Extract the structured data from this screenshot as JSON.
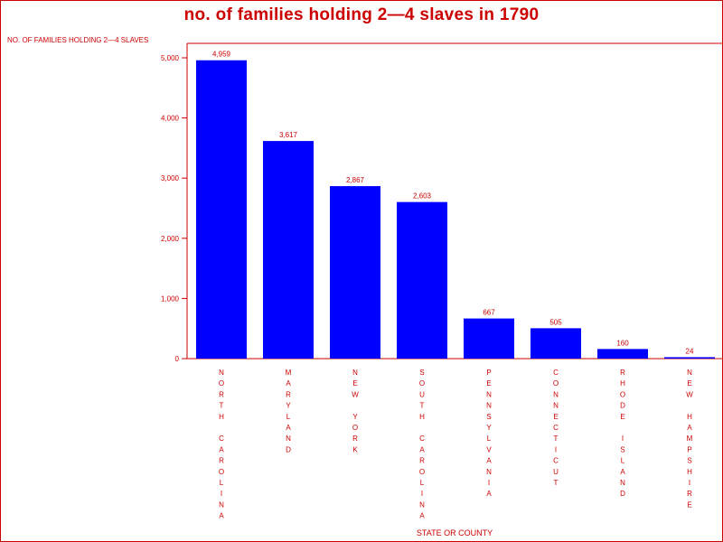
{
  "chart_data": {
    "type": "bar",
    "title": "no. of families holding 2—4 slaves in 1790",
    "ylabel": "NO. OF FAMILIES HOLDING 2—4 SLAVES",
    "xlabel": "STATE OR COUNTY",
    "ylim": [
      0,
      5000
    ],
    "yticks": [
      0,
      1000,
      2000,
      3000,
      4000,
      5000
    ],
    "ytick_labels": [
      "0",
      "1,000",
      "2,000",
      "3,000",
      "4,000",
      "5,000"
    ],
    "categories": [
      "NORTH CAROLINA",
      "MARYLAND",
      "NEW YORK",
      "SOUTH CAROLINA",
      "PENNSYLVANIA",
      "CONNECTICUT",
      "RHODE ISLAND",
      "NEW HAMPSHIRE"
    ],
    "values": [
      4959,
      3617,
      2867,
      2603,
      667,
      505,
      160,
      24
    ],
    "value_labels": [
      "4,959",
      "3,617",
      "2,867",
      "2,603",
      "667",
      "505",
      "160",
      "24"
    ],
    "grid": false,
    "legend": "none",
    "colors": {
      "bar": "#0000ff",
      "text": "#cc0000",
      "axis": "#cc0000"
    }
  }
}
